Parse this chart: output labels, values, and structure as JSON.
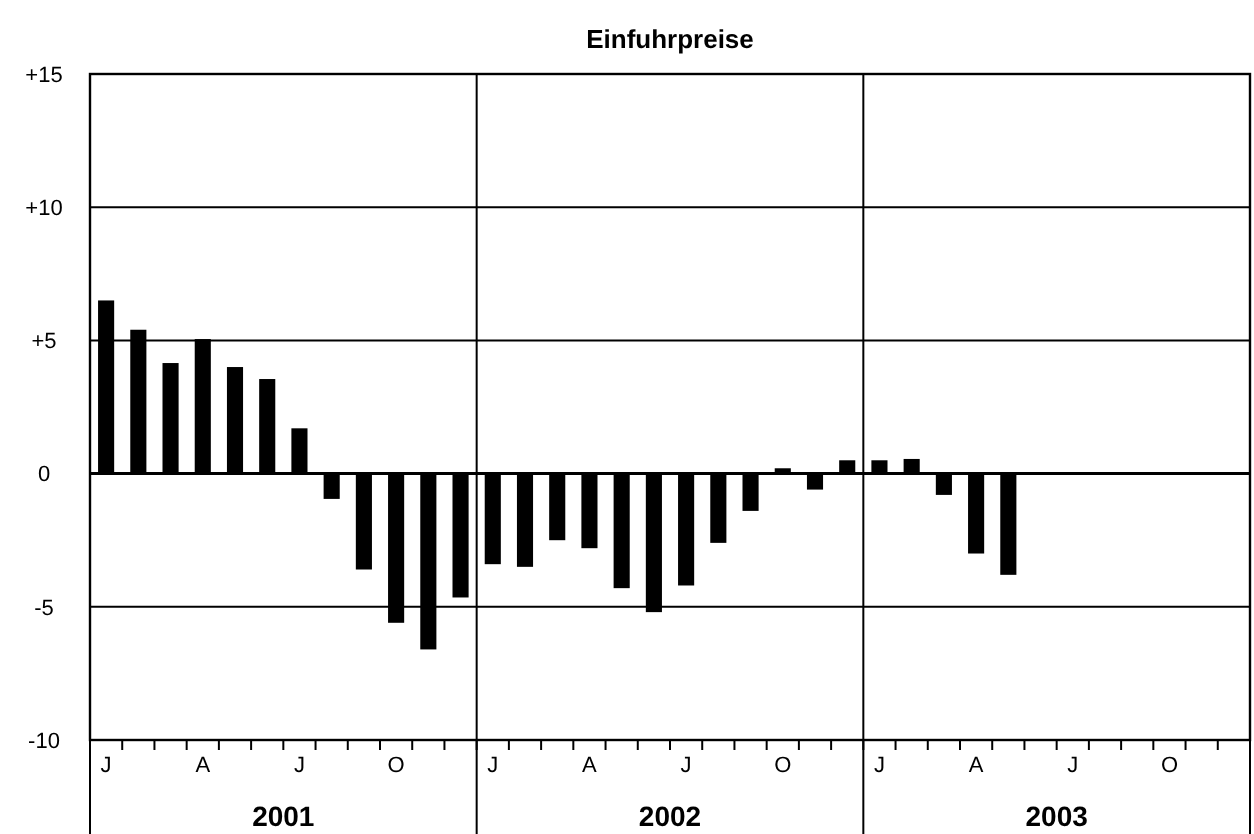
{
  "chart_data": {
    "type": "bar",
    "title": "Einfuhrpreise",
    "categories": [
      "J",
      null,
      null,
      "A",
      null,
      null,
      "J",
      null,
      null,
      "O",
      null,
      null,
      "J",
      null,
      null,
      "A",
      null,
      null,
      "J",
      null,
      null,
      "O",
      null,
      null,
      "J",
      null,
      null,
      "A",
      null,
      null,
      "J",
      null,
      null,
      "O",
      null,
      null
    ],
    "values": [
      6.5,
      5.4,
      4.15,
      5.05,
      4.0,
      3.55,
      1.7,
      -0.95,
      -3.6,
      -5.6,
      -6.6,
      -4.65,
      -3.4,
      -3.5,
      -2.5,
      -2.8,
      -4.3,
      -5.2,
      -4.2,
      -2.6,
      -1.4,
      0.2,
      -0.6,
      0.5,
      0.5,
      0.55,
      -0.8,
      -3.0,
      -3.8,
      null,
      null,
      null,
      null,
      null,
      null,
      null
    ],
    "color": "#000000",
    "ylim": [
      -10,
      15
    ],
    "yticks": [
      {
        "value": -10,
        "label": "-10"
      },
      {
        "value": -5,
        "label": "-5"
      },
      0,
      {
        "value": 5,
        "label": "+5"
      },
      {
        "value": 10,
        "label": "+10"
      },
      {
        "value": 15,
        "label": "+15"
      }
    ],
    "grid": "y",
    "annotations": [
      "2001",
      "2002",
      "2003"
    ]
  }
}
